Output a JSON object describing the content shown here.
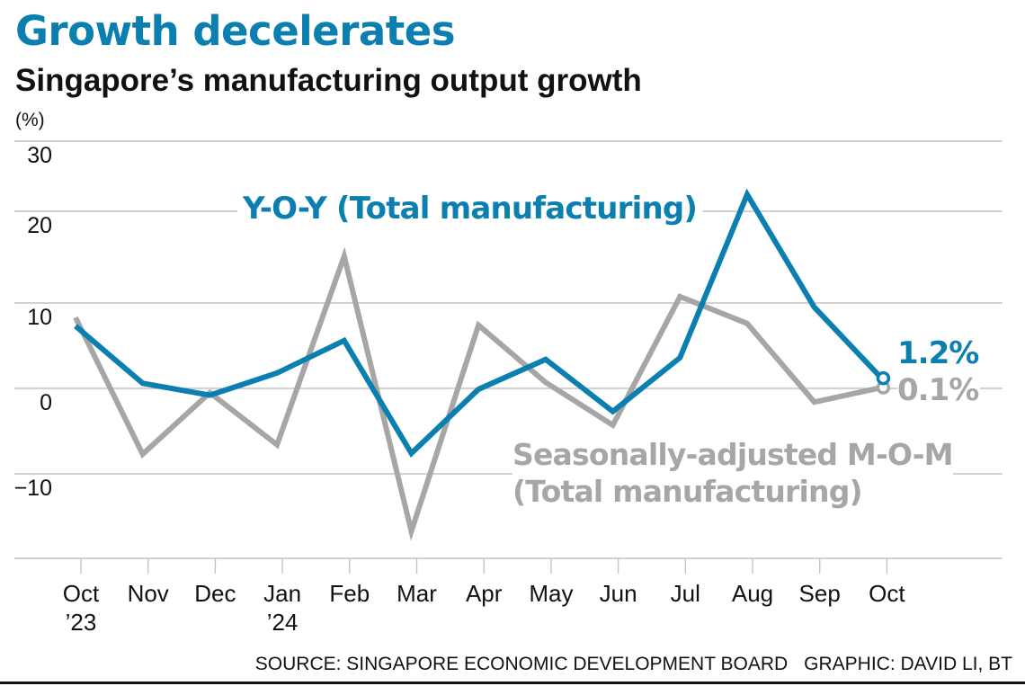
{
  "header": {
    "title": "Growth decelerates",
    "subtitle": "Singapore’s manufacturing output growth",
    "unit": "(%)"
  },
  "footer": {
    "source": "SOURCE: SINGAPORE ECONOMIC DEVELOPMENT BOARD",
    "credit": "GRAPHIC: DAVID LI, BT"
  },
  "colors": {
    "yoy": "#0a7fb0",
    "mom": "#a6a6a6",
    "grid": "#c4c4c4"
  },
  "chart_data": {
    "type": "line",
    "title": "Growth decelerates",
    "subtitle": "Singapore’s manufacturing output growth",
    "ylabel": "(%)",
    "xlabel": "",
    "ylim": [
      -20,
      30
    ],
    "yticks": [
      30,
      20,
      10,
      0,
      -10
    ],
    "ytick_labels": [
      "30",
      "20",
      "10",
      "0",
      "−10"
    ],
    "grid": true,
    "categories": [
      "Oct '23",
      "Nov",
      "Dec",
      "Jan '24",
      "Feb",
      "Mar",
      "Apr",
      "May",
      "Jun",
      "Jul",
      "Aug",
      "Sep",
      "Oct"
    ],
    "xtick_labels": [
      {
        "line1": "Oct",
        "line2": "’23"
      },
      {
        "line1": "Nov",
        "line2": ""
      },
      {
        "line1": "Dec",
        "line2": ""
      },
      {
        "line1": "Jan",
        "line2": "’24"
      },
      {
        "line1": "Feb",
        "line2": ""
      },
      {
        "line1": "Mar",
        "line2": ""
      },
      {
        "line1": "Apr",
        "line2": ""
      },
      {
        "line1": "May",
        "line2": ""
      },
      {
        "line1": "Jun",
        "line2": ""
      },
      {
        "line1": "Jul",
        "line2": ""
      },
      {
        "line1": "Aug",
        "line2": ""
      },
      {
        "line1": "Sep",
        "line2": ""
      },
      {
        "line1": "Oct",
        "line2": ""
      }
    ],
    "series": [
      {
        "name": "Y-O-Y (Total manufacturing)",
        "key": "yoy",
        "values": [
          7.3,
          0.6,
          -0.8,
          1.8,
          5.6,
          -7.6,
          -0.1,
          3.4,
          -2.7,
          3.6,
          22.4,
          9.5,
          1.2
        ],
        "end_label": "1.2%"
      },
      {
        "name": "Seasonally-adjusted M-O-M (Total manufacturing)",
        "name_line1": "Seasonally-adjusted M-O-M",
        "name_line2": "(Total manufacturing)",
        "key": "mom",
        "values": [
          8.3,
          -7.7,
          -0.5,
          -6.6,
          15.1,
          -16.8,
          7.4,
          0.7,
          -4.3,
          10.7,
          7.6,
          -1.6,
          0.1
        ],
        "end_label": "0.1%"
      }
    ],
    "legend": "inline-labels"
  }
}
